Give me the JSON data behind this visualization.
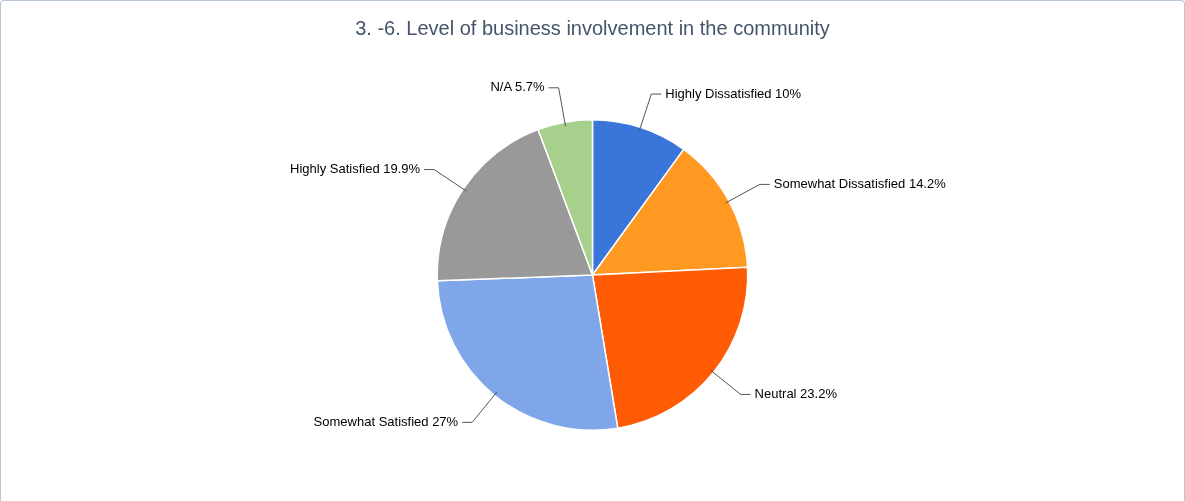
{
  "chart_data": {
    "type": "pie",
    "title": "3. -6. Level of business involvement in the community",
    "categories": [
      "Highly Dissatisfied",
      "Somewhat Dissatisfied",
      "Neutral",
      "Somewhat Satisfied",
      "Highly Satisfied",
      "N/A"
    ],
    "values": [
      10,
      14.2,
      23.2,
      27,
      19.9,
      5.7
    ],
    "value_labels": [
      "10%",
      "14.2%",
      "23.2%",
      "27%",
      "19.9%",
      "5.7%"
    ],
    "colors": [
      "#3a75d9",
      "#ff9922",
      "#ff5a04",
      "#7ea6e8",
      "#999999",
      "#a6d08c"
    ],
    "legend": false
  }
}
